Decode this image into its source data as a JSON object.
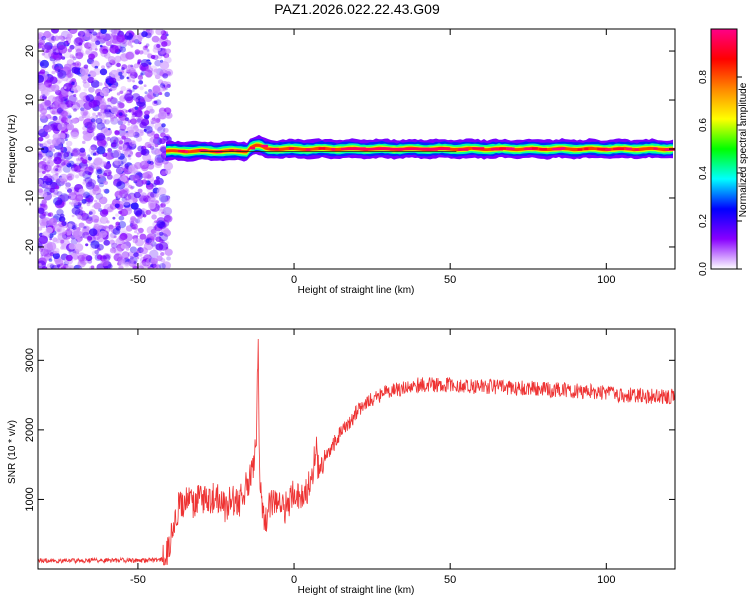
{
  "title": "PAZ1.2026.022.22.43.G09",
  "chart_data": [
    {
      "type": "heatmap",
      "title": "PAZ1.2026.022.22.43.G09",
      "xlabel": "Height of straight line (km)",
      "ylabel": "Frequency (Hz)",
      "xlim": [
        -82,
        122
      ],
      "ylim": [
        -24.5,
        24.5
      ],
      "x_ticks": [
        -50,
        0,
        50,
        100
      ],
      "x_tick_labels": [
        "-50",
        "0",
        "50",
        "100"
      ],
      "y_ticks": [
        -20,
        -10,
        0,
        10,
        20
      ],
      "y_tick_labels": [
        "-20",
        "-10",
        "0",
        "10",
        "20"
      ],
      "noise_region_x": [
        -82,
        -41
      ],
      "signal_band_center_hz": 0,
      "colorbar": {
        "label": "Normalized spectral amplitude",
        "range": [
          0,
          1
        ],
        "ticks": [
          0.0,
          0.2,
          0.4,
          0.6,
          0.8
        ],
        "tick_labels": [
          "0.0",
          "0.2",
          "0.4",
          "0.6",
          "0.8"
        ],
        "colors": [
          "#ffffff",
          "#8800ff",
          "#0000ff",
          "#00ffff",
          "#00ff00",
          "#ffff00",
          "#ff8800",
          "#ff0000",
          "#ff0088"
        ]
      }
    },
    {
      "type": "line",
      "title": "",
      "xlabel": "Height of straight line (km)",
      "ylabel": "SNR (10 * v/v)",
      "xlim": [
        -82,
        122
      ],
      "ylim": [
        0,
        3450
      ],
      "x_ticks": [
        -50,
        0,
        50,
        100
      ],
      "x_tick_labels": [
        "-50",
        "0",
        "50",
        "100"
      ],
      "y_ticks": [
        1000,
        2000,
        3000
      ],
      "y_tick_labels": [
        "1000",
        "2000",
        "3000"
      ],
      "series_color": "#ee3333",
      "series": [
        {
          "name": "SNR",
          "x": [
            -82,
            -70,
            -60,
            -50,
            -42,
            -40,
            -38,
            -35,
            -32,
            -30,
            -28,
            -25,
            -22,
            -20,
            -18,
            -16,
            -14,
            -13,
            -12,
            -11.5,
            -11,
            -10,
            -9,
            -8,
            -6,
            -4,
            -2,
            0,
            2,
            4,
            6,
            7,
            8,
            10,
            12,
            15,
            18,
            20,
            25,
            30,
            35,
            40,
            45,
            50,
            55,
            60,
            65,
            70,
            75,
            80,
            85,
            90,
            95,
            100,
            105,
            110,
            115,
            122
          ],
          "y": [
            120,
            120,
            125,
            125,
            130,
            300,
            820,
            980,
            900,
            1070,
            950,
            1050,
            850,
            1030,
            920,
            1100,
            1350,
            1550,
            1900,
            3450,
            1150,
            830,
            740,
            900,
            1000,
            850,
            900,
            1120,
            1020,
            1100,
            1400,
            1750,
            1350,
            1600,
            1750,
            1950,
            2100,
            2250,
            2450,
            2550,
            2600,
            2650,
            2650,
            2650,
            2620,
            2620,
            2620,
            2600,
            2600,
            2580,
            2580,
            2560,
            2550,
            2530,
            2500,
            2500,
            2480,
            2480
          ]
        }
      ]
    }
  ]
}
